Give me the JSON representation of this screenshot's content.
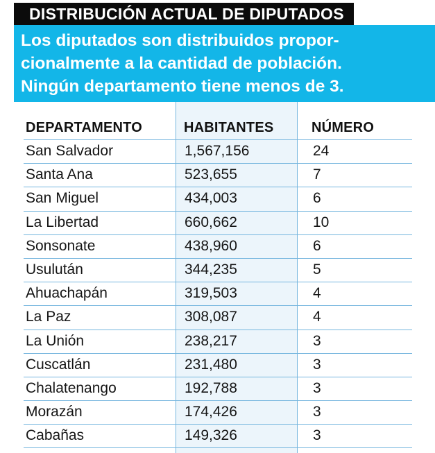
{
  "title": "DISTRIBUCIÓN ACTUAL DE DIPUTADOS",
  "subtitle_lines": [
    "Los diputados son distribuidos propor-",
    "cionalmente a la cantidad de población.",
    "Ningún departamento tiene menos de 3."
  ],
  "table": {
    "headers": {
      "departamento": "DEPARTAMENTO",
      "habitantes": "HABITANTES",
      "numero": "NÚMERO"
    },
    "rows": [
      {
        "departamento": "San Salvador",
        "habitantes": "1,567,156",
        "numero": "24"
      },
      {
        "departamento": "Santa Ana",
        "habitantes": "523,655",
        "numero": "7"
      },
      {
        "departamento": "San Miguel",
        "habitantes": "434,003",
        "numero": "6"
      },
      {
        "departamento": "La Libertad",
        "habitantes": "660,662",
        "numero": "10"
      },
      {
        "departamento": "Sonsonate",
        "habitantes": "438,960",
        "numero": "6"
      },
      {
        "departamento": "Usulután",
        "habitantes": "344,235",
        "numero": "5"
      },
      {
        "departamento": "Ahuachapán",
        "habitantes": "319,503",
        "numero": "4"
      },
      {
        "departamento": "La Paz",
        "habitantes": "308,087",
        "numero": "4"
      },
      {
        "departamento": "La Unión",
        "habitantes": "238,217",
        "numero": "3"
      },
      {
        "departamento": "Cuscatlán",
        "habitantes": "231,480",
        "numero": "3"
      },
      {
        "departamento": "Chalatenango",
        "habitantes": "192,788",
        "numero": "3"
      },
      {
        "departamento": "Morazán",
        "habitantes": "174,426",
        "numero": "3"
      },
      {
        "departamento": "Cabañas",
        "habitantes": "149,326",
        "numero": "3"
      }
    ]
  },
  "colors": {
    "title_bg": "#0b0b0b",
    "subtitle_bg": "#13b6e8",
    "rule": "#74b5de",
    "highlight_column": "#ecf5fb"
  }
}
